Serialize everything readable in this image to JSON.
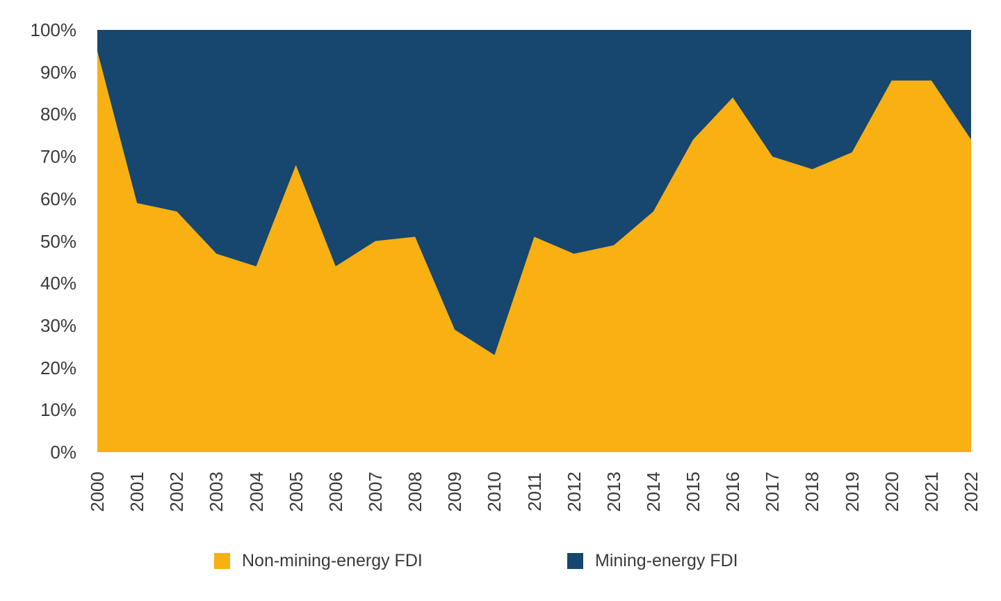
{
  "chart_data": {
    "type": "area",
    "subtype": "stacked-100-percent",
    "x": [
      2000,
      2001,
      2002,
      2003,
      2004,
      2005,
      2006,
      2007,
      2008,
      2009,
      2010,
      2011,
      2012,
      2013,
      2014,
      2015,
      2016,
      2017,
      2018,
      2019,
      2020,
      2021,
      2022
    ],
    "series": [
      {
        "name": "Non-mining-energy FDI",
        "color": "#F8B012",
        "values": [
          95,
          59,
          57,
          47,
          44,
          68,
          44,
          50,
          51,
          29,
          23,
          51,
          47,
          49,
          57,
          74,
          84,
          70,
          67,
          71,
          88,
          88,
          74
        ]
      },
      {
        "name": "Mining-energy FDI",
        "color": "#17466E",
        "values": [
          5,
          41,
          43,
          53,
          56,
          32,
          56,
          50,
          49,
          71,
          77,
          49,
          53,
          51,
          43,
          26,
          16,
          30,
          33,
          29,
          12,
          12,
          26
        ]
      }
    ],
    "title": "",
    "xlabel": "",
    "ylabel": "",
    "ylim": [
      0,
      100
    ],
    "y_tick_labels": [
      "100%",
      "90%",
      "80%",
      "70%",
      "60%",
      "50%",
      "40%",
      "30%",
      "20%",
      "10%",
      "0%"
    ],
    "grid": false,
    "legend_position": "bottom"
  },
  "legend": {
    "items": [
      {
        "label": "Non-mining-energy FDI",
        "color": "#F8B012"
      },
      {
        "label": "Mining-energy FDI",
        "color": "#17466E"
      }
    ]
  }
}
